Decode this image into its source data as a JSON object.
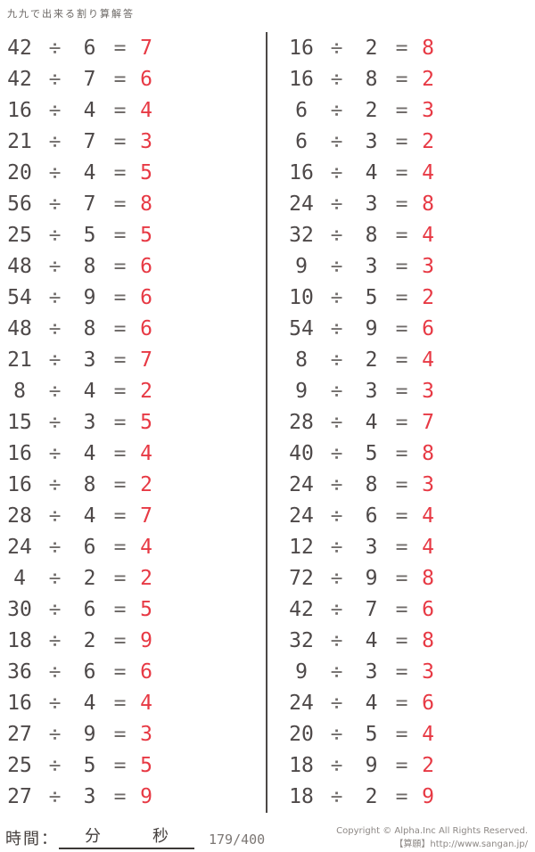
{
  "title": "九九で出来る割り算解答",
  "symbols": {
    "divide": "÷",
    "equals": "="
  },
  "colors": {
    "problem_text": "#4e4949",
    "operator_text": "#716d6b",
    "answer_text": "#e73944",
    "divider": "#4c4846"
  },
  "problems": {
    "left": [
      {
        "dividend": "42",
        "divisor": "6",
        "answer": "7"
      },
      {
        "dividend": "42",
        "divisor": "7",
        "answer": "6"
      },
      {
        "dividend": "16",
        "divisor": "4",
        "answer": "4"
      },
      {
        "dividend": "21",
        "divisor": "7",
        "answer": "3"
      },
      {
        "dividend": "20",
        "divisor": "4",
        "answer": "5"
      },
      {
        "dividend": "56",
        "divisor": "7",
        "answer": "8"
      },
      {
        "dividend": "25",
        "divisor": "5",
        "answer": "5"
      },
      {
        "dividend": "48",
        "divisor": "8",
        "answer": "6"
      },
      {
        "dividend": "54",
        "divisor": "9",
        "answer": "6"
      },
      {
        "dividend": "48",
        "divisor": "8",
        "answer": "6"
      },
      {
        "dividend": "21",
        "divisor": "3",
        "answer": "7"
      },
      {
        "dividend": "8",
        "divisor": "4",
        "answer": "2"
      },
      {
        "dividend": "15",
        "divisor": "3",
        "answer": "5"
      },
      {
        "dividend": "16",
        "divisor": "4",
        "answer": "4"
      },
      {
        "dividend": "16",
        "divisor": "8",
        "answer": "2"
      },
      {
        "dividend": "28",
        "divisor": "4",
        "answer": "7"
      },
      {
        "dividend": "24",
        "divisor": "6",
        "answer": "4"
      },
      {
        "dividend": "4",
        "divisor": "2",
        "answer": "2"
      },
      {
        "dividend": "30",
        "divisor": "6",
        "answer": "5"
      },
      {
        "dividend": "18",
        "divisor": "2",
        "answer": "9"
      },
      {
        "dividend": "36",
        "divisor": "6",
        "answer": "6"
      },
      {
        "dividend": "16",
        "divisor": "4",
        "answer": "4"
      },
      {
        "dividend": "27",
        "divisor": "9",
        "answer": "3"
      },
      {
        "dividend": "25",
        "divisor": "5",
        "answer": "5"
      },
      {
        "dividend": "27",
        "divisor": "3",
        "answer": "9"
      }
    ],
    "right": [
      {
        "dividend": "16",
        "divisor": "2",
        "answer": "8"
      },
      {
        "dividend": "16",
        "divisor": "8",
        "answer": "2"
      },
      {
        "dividend": "6",
        "divisor": "2",
        "answer": "3"
      },
      {
        "dividend": "6",
        "divisor": "3",
        "answer": "2"
      },
      {
        "dividend": "16",
        "divisor": "4",
        "answer": "4"
      },
      {
        "dividend": "24",
        "divisor": "3",
        "answer": "8"
      },
      {
        "dividend": "32",
        "divisor": "8",
        "answer": "4"
      },
      {
        "dividend": "9",
        "divisor": "3",
        "answer": "3"
      },
      {
        "dividend": "10",
        "divisor": "5",
        "answer": "2"
      },
      {
        "dividend": "54",
        "divisor": "9",
        "answer": "6"
      },
      {
        "dividend": "8",
        "divisor": "2",
        "answer": "4"
      },
      {
        "dividend": "9",
        "divisor": "3",
        "answer": "3"
      },
      {
        "dividend": "28",
        "divisor": "4",
        "answer": "7"
      },
      {
        "dividend": "40",
        "divisor": "5",
        "answer": "8"
      },
      {
        "dividend": "24",
        "divisor": "8",
        "answer": "3"
      },
      {
        "dividend": "24",
        "divisor": "6",
        "answer": "4"
      },
      {
        "dividend": "12",
        "divisor": "3",
        "answer": "4"
      },
      {
        "dividend": "72",
        "divisor": "9",
        "answer": "8"
      },
      {
        "dividend": "42",
        "divisor": "7",
        "answer": "6"
      },
      {
        "dividend": "32",
        "divisor": "4",
        "answer": "8"
      },
      {
        "dividend": "9",
        "divisor": "3",
        "answer": "3"
      },
      {
        "dividend": "24",
        "divisor": "4",
        "answer": "6"
      },
      {
        "dividend": "20",
        "divisor": "5",
        "answer": "4"
      },
      {
        "dividend": "18",
        "divisor": "9",
        "answer": "2"
      },
      {
        "dividend": "18",
        "divisor": "2",
        "answer": "9"
      }
    ]
  },
  "footer": {
    "time_label": "時間：",
    "minutes_label": "分",
    "seconds_label": "秒",
    "progress": "179/400",
    "copyright_line1": "Copyright © Alpha.Inc All Rights Reserved.",
    "copyright_line2": "【算願】http://www.sangan.jp/"
  }
}
